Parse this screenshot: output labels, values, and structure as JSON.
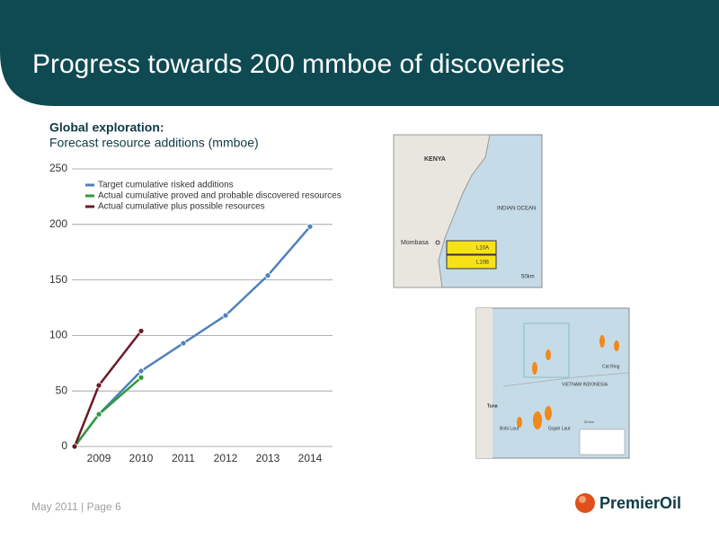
{
  "slide": {
    "title": "Progress towards 200 mmboe of discoveries",
    "footer": "May 2011 | Page 6",
    "logo": "PremierOil"
  },
  "chart_data": {
    "type": "line",
    "title": "Global exploration:",
    "subtitle": "Forecast resource additions (mmboe)",
    "categories": [
      null,
      "2009",
      "2010",
      "2011",
      "2012",
      "2013",
      "2014"
    ],
    "series": [
      {
        "name": "Target cumulative risked additions",
        "color": "#4f81bd",
        "values": [
          0,
          29,
          68,
          93,
          118,
          154,
          198
        ]
      },
      {
        "name": "Actual cumulative proved and probable discovered resources",
        "color": "#2e9a3a",
        "values": [
          0,
          29,
          62,
          null,
          null,
          null,
          null
        ]
      },
      {
        "name": "Actual cumulative plus possible resources",
        "color": "#6b1a2a",
        "values": [
          0,
          55,
          104,
          null,
          null,
          null,
          null
        ]
      }
    ],
    "ylim": [
      0,
      250
    ],
    "yticks": [
      0,
      50,
      100,
      150,
      200,
      250
    ],
    "grid": true,
    "legend": "top-left"
  },
  "maps": [
    {
      "labels": [
        "KENYA",
        "INDIAN OCEAN",
        "Mombasa",
        "L10A",
        "L10B",
        "50km"
      ]
    },
    {
      "labels": [
        "Tuna",
        "Gajah Laut",
        "VIETNAM INDONESIA",
        "Cat Ring",
        "Bobi Laut",
        "20 km"
      ]
    }
  ]
}
